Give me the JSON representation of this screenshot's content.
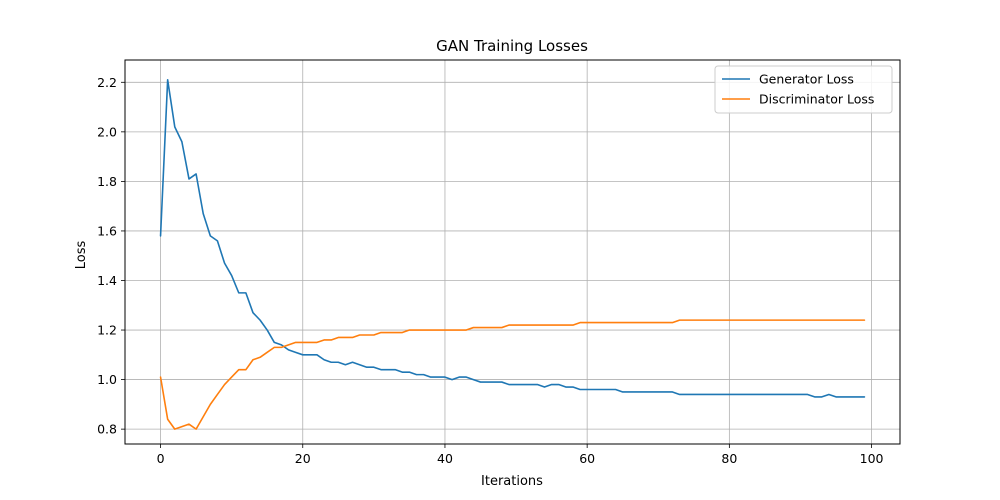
{
  "chart_data": {
    "type": "line",
    "title": "GAN Training Losses",
    "xlabel": "Iterations",
    "ylabel": "Loss",
    "xlim": [
      -5,
      104
    ],
    "ylim": [
      0.74,
      2.29
    ],
    "x_ticks": [
      0,
      20,
      40,
      60,
      80,
      100
    ],
    "y_ticks": [
      0.8,
      1.0,
      1.2,
      1.4,
      1.6,
      1.8,
      2.0,
      2.2
    ],
    "x_tick_labels": [
      "0",
      "20",
      "40",
      "60",
      "80",
      "100"
    ],
    "y_tick_labels": [
      "0.8",
      "1.0",
      "1.2",
      "1.4",
      "1.6",
      "1.8",
      "2.0",
      "2.2"
    ],
    "grid": true,
    "legend_position": "top-right",
    "series": [
      {
        "name": "Generator Loss",
        "color": "#1f77b4",
        "values": [
          1.58,
          2.21,
          2.02,
          1.96,
          1.81,
          1.83,
          1.67,
          1.58,
          1.56,
          1.47,
          1.42,
          1.35,
          1.35,
          1.27,
          1.24,
          1.2,
          1.15,
          1.14,
          1.12,
          1.11,
          1.1,
          1.1,
          1.1,
          1.08,
          1.07,
          1.07,
          1.06,
          1.07,
          1.06,
          1.05,
          1.05,
          1.04,
          1.04,
          1.04,
          1.03,
          1.03,
          1.02,
          1.02,
          1.01,
          1.01,
          1.01,
          1.0,
          1.01,
          1.01,
          1.0,
          0.99,
          0.99,
          0.99,
          0.99,
          0.98,
          0.98,
          0.98,
          0.98,
          0.98,
          0.97,
          0.98,
          0.98,
          0.97,
          0.97,
          0.96,
          0.96,
          0.96,
          0.96,
          0.96,
          0.96,
          0.95,
          0.95,
          0.95,
          0.95,
          0.95,
          0.95,
          0.95,
          0.95,
          0.94,
          0.94,
          0.94,
          0.94,
          0.94,
          0.94,
          0.94,
          0.94,
          0.94,
          0.94,
          0.94,
          0.94,
          0.94,
          0.94,
          0.94,
          0.94,
          0.94,
          0.94,
          0.94,
          0.93,
          0.93,
          0.94,
          0.93,
          0.93,
          0.93,
          0.93,
          0.93
        ]
      },
      {
        "name": "Discriminator Loss",
        "color": "#ff7f0e",
        "values": [
          1.01,
          0.84,
          0.8,
          0.81,
          0.82,
          0.8,
          0.85,
          0.9,
          0.94,
          0.98,
          1.01,
          1.04,
          1.04,
          1.08,
          1.09,
          1.11,
          1.13,
          1.13,
          1.14,
          1.15,
          1.15,
          1.15,
          1.15,
          1.16,
          1.16,
          1.17,
          1.17,
          1.17,
          1.18,
          1.18,
          1.18,
          1.19,
          1.19,
          1.19,
          1.19,
          1.2,
          1.2,
          1.2,
          1.2,
          1.2,
          1.2,
          1.2,
          1.2,
          1.2,
          1.21,
          1.21,
          1.21,
          1.21,
          1.21,
          1.22,
          1.22,
          1.22,
          1.22,
          1.22,
          1.22,
          1.22,
          1.22,
          1.22,
          1.22,
          1.23,
          1.23,
          1.23,
          1.23,
          1.23,
          1.23,
          1.23,
          1.23,
          1.23,
          1.23,
          1.23,
          1.23,
          1.23,
          1.23,
          1.24,
          1.24,
          1.24,
          1.24,
          1.24,
          1.24,
          1.24,
          1.24,
          1.24,
          1.24,
          1.24,
          1.24,
          1.24,
          1.24,
          1.24,
          1.24,
          1.24,
          1.24,
          1.24,
          1.24,
          1.24,
          1.24,
          1.24,
          1.24,
          1.24,
          1.24,
          1.24
        ]
      }
    ]
  }
}
